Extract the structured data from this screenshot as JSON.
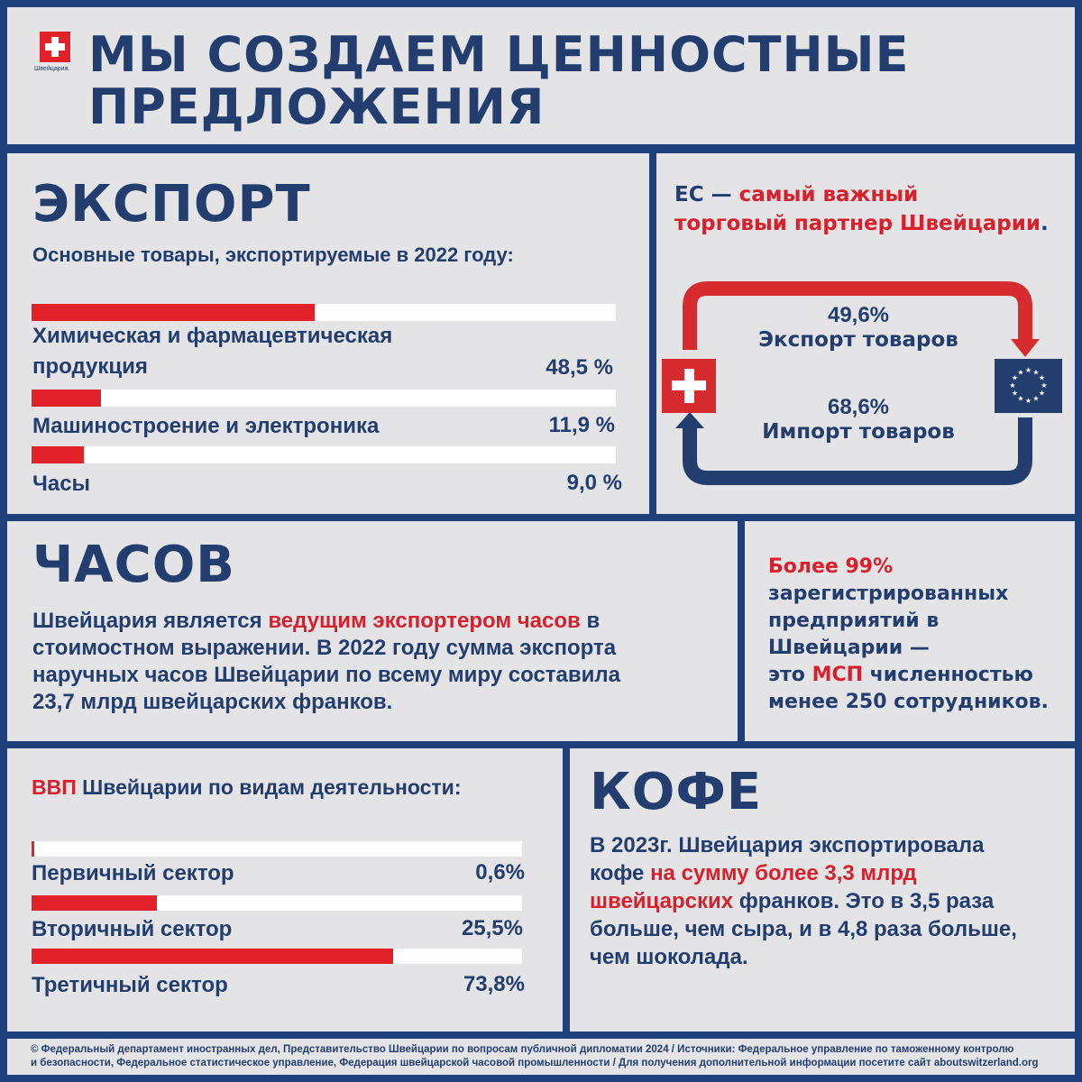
{
  "header": {
    "logo_text": "Швейцария.",
    "title_line1": "МЫ СОЗДАЕМ ЦЕННОСТНЫЕ",
    "title_line2": "ПРЕДЛОЖЕНИЯ"
  },
  "colors": {
    "navy": "#223d6e",
    "red": "#e1222b",
    "panel_bg": "#e4e4e6",
    "border": "#1f3f7a"
  },
  "export": {
    "heading": "ЭКСПОРТ",
    "subtitle": "Основные товары, экспортируемые в 2022 году:",
    "items": [
      {
        "label_line1": "Химическая и фармацевтическая",
        "label_line2": "продукция",
        "value": "48,5 %",
        "pct": 48.5
      },
      {
        "label_line1": "Машиностроение и электроника",
        "label_line2": "",
        "value": "11,9 %",
        "pct": 11.9
      },
      {
        "label_line1": "Часы",
        "label_line2": "",
        "value": "9,0 %",
        "pct": 9.0
      }
    ]
  },
  "eu": {
    "head_prefix": "ЕС — ",
    "head_red1": "самый важный",
    "head_red2": "торговый партнер Швейцарии",
    "head_suffix": ".",
    "export_pct": "49,6%",
    "export_label": "Экспорт товаров",
    "import_pct": "68,6%",
    "import_label": "Импорт товаров",
    "from_flag": "switzerland-flag",
    "to_flag": "eu-flag"
  },
  "watches": {
    "heading": "ЧАСОВ",
    "text_pre": "Швейцария является ",
    "text_red": "ведущим экспортером часов",
    "text_post_line1": " в",
    "line2": "стоимостном выражении. В 2022 году сумма экспорта",
    "line3": "наручных часов Швейцарии по всему миру составила",
    "line4": "23,7 млрд швейцарских франков."
  },
  "sme": {
    "line1_red": "Более 99%",
    "line2": "зарегистрированных",
    "line3": "предприятий в",
    "line4": "Швейцарии —",
    "line5_pre": "это ",
    "line5_red": "МСП",
    "line5_post": " численностью",
    "line6": "менее 250 сотрудников."
  },
  "gdp": {
    "title_red": "ВВП",
    "title_rest": " Швейцарии по видам деятельности:",
    "items": [
      {
        "label": "Первичный сектор",
        "value": "0,6%",
        "pct": 0.6
      },
      {
        "label": "Вторичный сектор",
        "value": "25,5%",
        "pct": 25.5
      },
      {
        "label": "Третичный сектор",
        "value": "73,8%",
        "pct": 73.8
      }
    ]
  },
  "coffee": {
    "heading": "КОФЕ",
    "line1": "В 2023г. Швейцария экспортировала",
    "line2_pre": "кофе ",
    "line2_red": "на сумму более 3,3 млрд",
    "line3_red": "швейцарских",
    "line3_post": " франков. Это в 3,5 раза",
    "line4": "больше, чем сыра, и в 4,8 раза больше,",
    "line5": "чем шоколада."
  },
  "footer": {
    "line1": "© Федеральный департамент иностранных дел, Представительство Швейцарии по вопросам публичной дипломатии 2024 / Источники: Федеральное управление по таможенному контролю",
    "line2": "и безопасности, Федеральное статистическое управление, Федерация швейцарской часовой промышленности / Для получения дополнительной информации посетите сайт aboutswitzerland.org"
  },
  "chart_data": [
    {
      "type": "bar",
      "title": "Основные товары, экспортируемые в 2022 году:",
      "orientation": "horizontal",
      "categories": [
        "Химическая и фармацевтическая продукция",
        "Машиностроение и электроника",
        "Часы"
      ],
      "values": [
        48.5,
        11.9,
        9.0
      ],
      "unit": "%",
      "xlim": [
        0,
        100
      ]
    },
    {
      "type": "bar",
      "title": "ВВП Швейцарии по видам деятельности:",
      "orientation": "horizontal",
      "categories": [
        "Первичный сектор",
        "Вторичный сектор",
        "Третичный сектор"
      ],
      "values": [
        0.6,
        25.5,
        73.8
      ],
      "unit": "%",
      "xlim": [
        0,
        100
      ]
    }
  ]
}
